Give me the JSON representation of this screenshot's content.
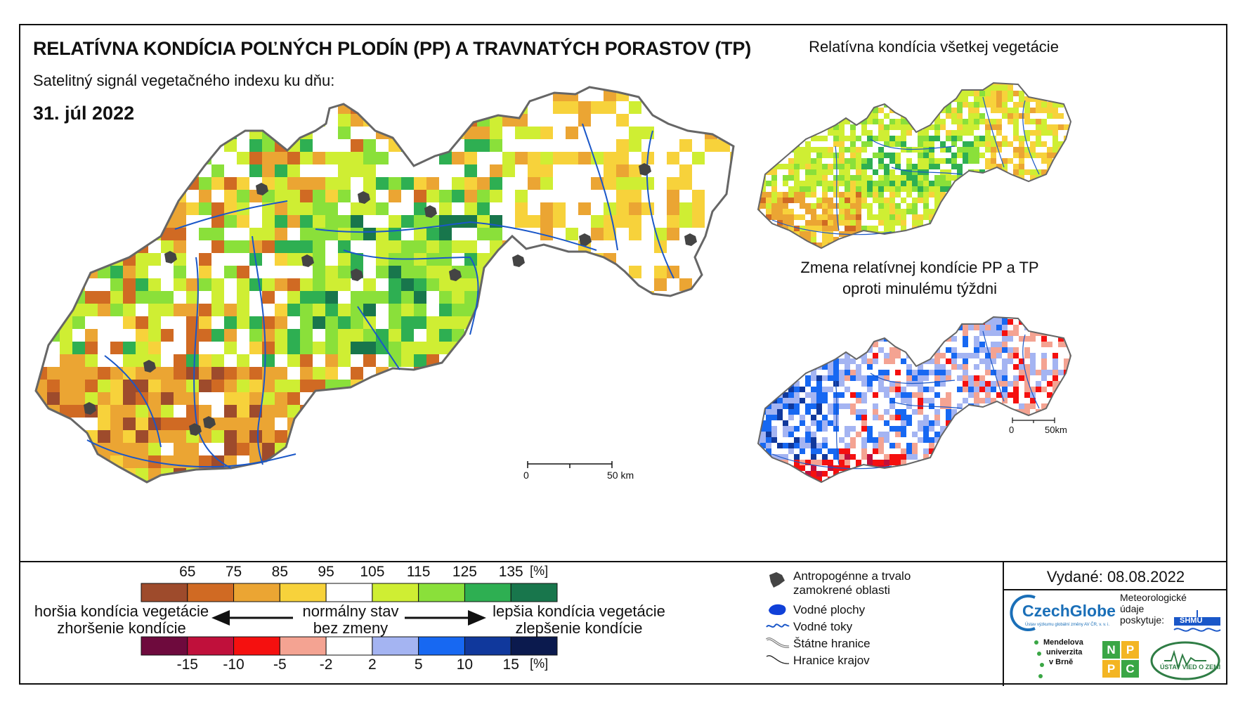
{
  "header": {
    "title": "RELATÍVNA KONDÍCIA POĽNÝCH PLODÍN (PP) A TRAVNATÝCH PORASTOV (TP)",
    "subtitle": "Satelitný signál vegetačného indexu ku dňu:",
    "date": "31. júl 2022"
  },
  "insets": {
    "all_vegetation_title": "Relatívna kondícia všetkej vegetácie",
    "change_title_line1": "Zmena relatívnej kondície PP a TP",
    "change_title_line2": "oproti minulému týždni"
  },
  "scale_main": {
    "zero": "0",
    "end": "50 km"
  },
  "scale_inset": {
    "zero": "0",
    "end": "50km"
  },
  "legend": {
    "condition_ticks": [
      "65",
      "75",
      "85",
      "95",
      "105",
      "115",
      "125",
      "135",
      "[%]"
    ],
    "condition_colors": [
      "#9e4b2c",
      "#d06a23",
      "#eba533",
      "#f7d23b",
      "#ffffff",
      "#cfee33",
      "#8ae03a",
      "#2eaf52",
      "#18764c"
    ],
    "change_ticks": [
      "-15",
      "-10",
      "-5",
      "-2",
      "2",
      "5",
      "10",
      "15",
      "[%]"
    ],
    "change_colors": [
      "#6e0a3d",
      "#c0103b",
      "#f5100f",
      "#f4a392",
      "#ffffff",
      "#a4b4f2",
      "#1768f2",
      "#10389c",
      "#0b1a4e"
    ],
    "left_note_line1": "horšia kondícia vegetácie",
    "left_note_line2": "zhoršenie kondície",
    "center_note_line1": "normálny stav",
    "center_note_line2": "bez zmeny",
    "right_note_line1": "lepšia kondícia vegetácie",
    "right_note_line2": "zlepšenie kondície"
  },
  "key": {
    "anthropogenic": "Antropogénne a trvalo zamokrené oblasti",
    "water_bodies": "Vodné plochy",
    "rivers": "Vodné toky",
    "state_border": "Štátne hranice",
    "region_border": "Hranice krajov"
  },
  "issued": "Vydané: 08.08.2022",
  "logos": {
    "czechglobe": "CzechGlobe",
    "czechglobe_sub": "Ústav výzkumu globální změny AV ČR, v. v. i.",
    "meteo_line1": "Meteorologické",
    "meteo_line2": "údaje",
    "meteo_line3": "poskytuje:",
    "shmu": "SHMÚ",
    "mendel_line1": "Mendelova",
    "mendel_line2": "univerzita",
    "mendel_line3": "v Brně",
    "nppc": [
      "N",
      "P",
      "P",
      "C"
    ],
    "uvz": "ÚSTAV VIED O ZEMI"
  },
  "colors": {
    "river": "#1a57c8",
    "border": "#666666",
    "urban": "#444444",
    "lake": "#1040d8"
  }
}
